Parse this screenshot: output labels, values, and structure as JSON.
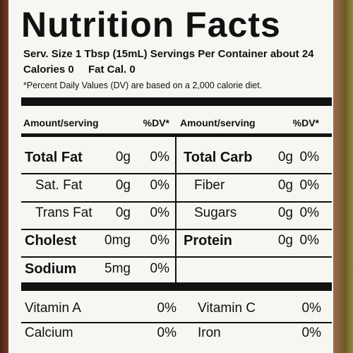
{
  "title": "Nutrition Facts",
  "serving": "Serv. Size 1 Tbsp (15mL)  Servings Per Container about 24",
  "calories": "Calories 0",
  "fat_calories": "Fat Cal. 0",
  "note": "*Percent Daily Values (DV) are based on a 2,000 calorie diet.",
  "table": {
    "header": [
      "Amount/serving",
      "%DV*",
      "Amount/serving",
      "%DV*"
    ],
    "rows": [
      [
        "Total Fat",
        "0g",
        "0%",
        "Total Carb",
        "0g",
        "0%"
      ],
      [
        "Sat. Fat",
        "0g",
        "0%",
        "Fiber",
        "0g",
        "0%"
      ],
      [
        "Trans Fat",
        "0g",
        "0%",
        "Sugars",
        "0g",
        "0%"
      ],
      [
        "Cholest",
        "0mg",
        "0%",
        "Protein",
        "0g",
        "0%"
      ],
      [
        "Sodium",
        "5mg",
        "0%"
      ]
    ]
  },
  "vitamins": [
    [
      "Vitamin A",
      "0%",
      "Vitamin C",
      "0%"
    ],
    [
      "Calcium",
      "0%",
      "Iron",
      "0%"
    ]
  ]
}
